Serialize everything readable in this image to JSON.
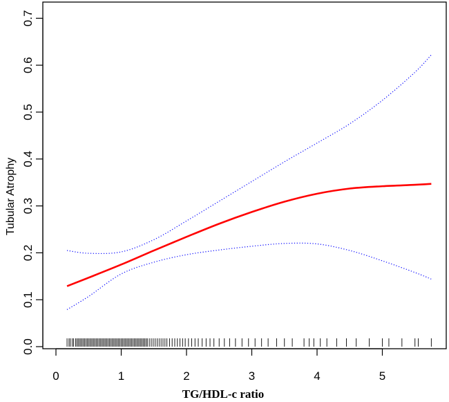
{
  "chart_data": {
    "type": "line",
    "title": "",
    "xlabel": "TG/HDL-c ratio",
    "ylabel": "Tubular Atrophy",
    "xlim": [
      0,
      5.9
    ],
    "ylim": [
      0,
      0.72
    ],
    "x_ticks": [
      0,
      1,
      2,
      3,
      4,
      5
    ],
    "y_ticks": [
      0.0,
      0.1,
      0.2,
      0.3,
      0.4,
      0.5,
      0.6,
      0.7
    ],
    "x_tick_labels": [
      "0",
      "1",
      "2",
      "3",
      "4",
      "5"
    ],
    "y_tick_labels": [
      "0.0",
      "0.1",
      "0.2",
      "0.3",
      "0.4",
      "0.5",
      "0.6",
      "0.7"
    ],
    "grid": false,
    "legend": "none",
    "series": [
      {
        "role": "estimate",
        "color": "#ff0000",
        "style": "solid",
        "x": [
          0.17,
          0.5,
          1.0,
          1.5,
          2.0,
          2.5,
          3.0,
          3.5,
          4.0,
          4.5,
          5.0,
          5.5,
          5.75
        ],
        "y": [
          0.129,
          0.147,
          0.175,
          0.205,
          0.234,
          0.262,
          0.287,
          0.309,
          0.326,
          0.337,
          0.342,
          0.345,
          0.347
        ]
      },
      {
        "role": "upper-ci",
        "color": "#0000ff",
        "style": "dotted",
        "x": [
          0.17,
          0.5,
          1.0,
          1.5,
          2.0,
          2.5,
          3.0,
          3.5,
          4.0,
          4.5,
          5.0,
          5.5,
          5.75
        ],
        "y": [
          0.205,
          0.199,
          0.202,
          0.228,
          0.268,
          0.31,
          0.352,
          0.394,
          0.434,
          0.475,
          0.525,
          0.585,
          0.622
        ]
      },
      {
        "role": "lower-ci",
        "color": "#0000ff",
        "style": "dotted",
        "x": [
          0.17,
          0.5,
          1.0,
          1.5,
          2.0,
          2.5,
          3.0,
          3.5,
          4.0,
          4.5,
          5.0,
          5.5,
          5.75
        ],
        "y": [
          0.079,
          0.107,
          0.155,
          0.18,
          0.196,
          0.206,
          0.214,
          0.22,
          0.219,
          0.205,
          0.183,
          0.158,
          0.144
        ]
      }
    ],
    "rug": [
      0.17,
      0.2,
      0.22,
      0.25,
      0.27,
      0.3,
      0.32,
      0.34,
      0.36,
      0.38,
      0.4,
      0.42,
      0.44,
      0.46,
      0.48,
      0.5,
      0.52,
      0.54,
      0.56,
      0.58,
      0.6,
      0.62,
      0.64,
      0.66,
      0.68,
      0.7,
      0.72,
      0.74,
      0.76,
      0.78,
      0.8,
      0.82,
      0.84,
      0.86,
      0.88,
      0.9,
      0.92,
      0.94,
      0.96,
      0.98,
      1.0,
      1.02,
      1.04,
      1.06,
      1.08,
      1.1,
      1.12,
      1.14,
      1.16,
      1.18,
      1.2,
      1.22,
      1.24,
      1.26,
      1.28,
      1.3,
      1.32,
      1.34,
      1.36,
      1.38,
      1.4,
      1.43,
      1.46,
      1.49,
      1.52,
      1.55,
      1.58,
      1.61,
      1.64,
      1.67,
      1.7,
      1.74,
      1.78,
      1.82,
      1.86,
      1.9,
      1.94,
      1.98,
      2.03,
      2.08,
      2.13,
      2.18,
      2.24,
      2.3,
      2.36,
      2.42,
      2.5,
      2.58,
      2.66,
      2.75,
      2.85,
      2.95,
      3.05,
      3.15,
      3.25,
      3.38,
      3.5,
      3.62,
      3.8,
      3.88,
      3.95,
      4.05,
      4.15,
      4.3,
      4.45,
      4.6,
      4.8,
      5.0,
      5.1,
      5.3,
      5.5,
      5.55,
      5.75
    ]
  }
}
